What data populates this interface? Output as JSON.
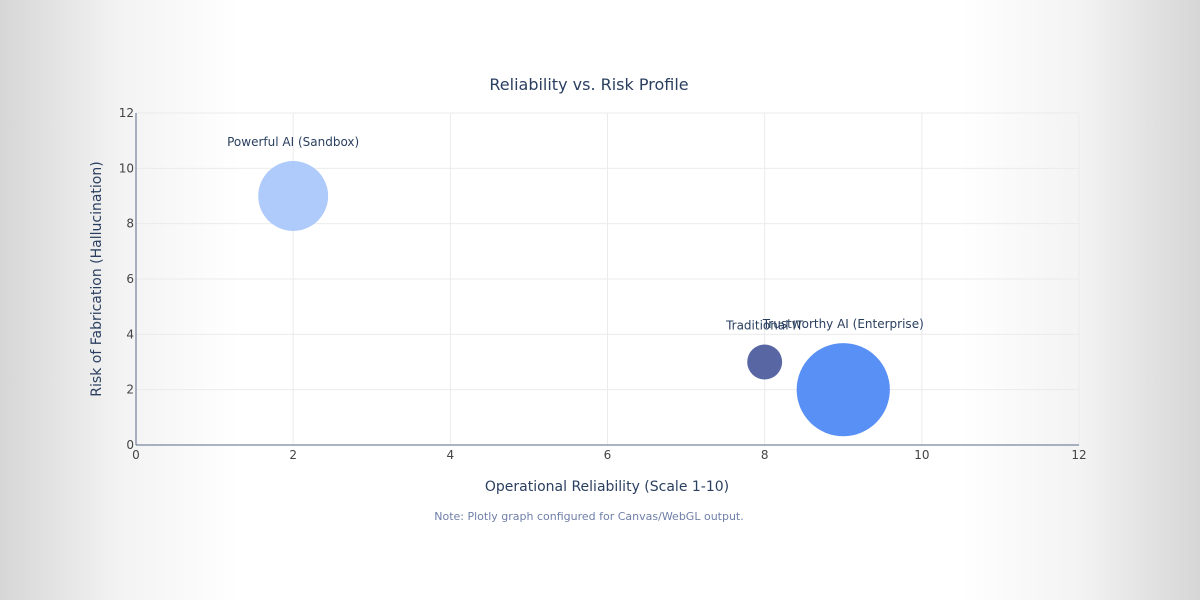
{
  "chart_data": {
    "type": "scatter",
    "title": "Reliability vs. Risk Profile",
    "xlabel": "Operational Reliability (Scale 1-10)",
    "ylabel": "Risk of Fabrication (Hallucination)",
    "xlim": [
      0,
      12
    ],
    "ylim": [
      0,
      12
    ],
    "xticks": [
      0,
      2,
      4,
      6,
      8,
      10,
      12
    ],
    "yticks": [
      0,
      2,
      4,
      6,
      8,
      10,
      12
    ],
    "grid": true,
    "points": [
      {
        "label": "Powerful AI (Sandbox)",
        "x": 2,
        "y": 9,
        "size": 30,
        "color": "#a7c7fb"
      },
      {
        "label": "Traditional IT",
        "x": 8,
        "y": 3,
        "size": 15,
        "color": "#4a5a9c"
      },
      {
        "label": "Trustworthy AI (Enterprise)",
        "x": 9,
        "y": 2,
        "size": 40,
        "color": "#4b87f5"
      }
    ]
  },
  "note": "Note: Plotly graph configured for Canvas/WebGL output."
}
